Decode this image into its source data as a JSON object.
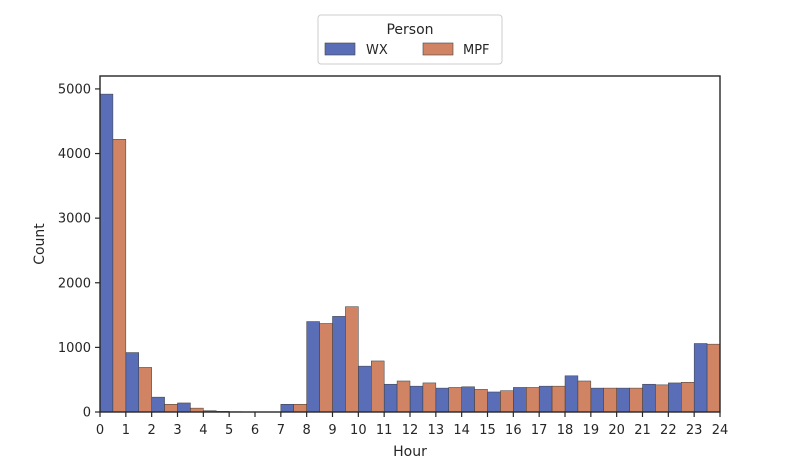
{
  "chart_data": {
    "type": "bar",
    "xlabel": "Hour",
    "ylabel": "Count",
    "x_ticks": [
      "0",
      "1",
      "2",
      "3",
      "4",
      "5",
      "6",
      "7",
      "8",
      "9",
      "10",
      "11",
      "12",
      "13",
      "14",
      "15",
      "16",
      "17",
      "18",
      "19",
      "20",
      "21",
      "22",
      "23",
      "24"
    ],
    "y_ticks": [
      "0",
      "1000",
      "2000",
      "3000",
      "4000",
      "5000"
    ],
    "xlim": [
      0,
      24
    ],
    "ylim": [
      0,
      5200
    ],
    "legend": {
      "title": "Person",
      "position": "top-center"
    },
    "categories": [
      0,
      1,
      2,
      3,
      4,
      5,
      6,
      7,
      8,
      9,
      10,
      11,
      12,
      13,
      14,
      15,
      16,
      17,
      18,
      19,
      20,
      21,
      22,
      23
    ],
    "series": [
      {
        "name": "WX",
        "color": "#5a6eb7",
        "values": [
          4920,
          920,
          230,
          140,
          20,
          5,
          3,
          120,
          1400,
          1480,
          710,
          430,
          400,
          370,
          390,
          310,
          380,
          400,
          560,
          370,
          370,
          430,
          450,
          1060
        ]
      },
      {
        "name": "MPF",
        "color": "#d08463",
        "values": [
          4220,
          690,
          120,
          60,
          10,
          3,
          2,
          120,
          1370,
          1630,
          790,
          480,
          450,
          380,
          350,
          330,
          380,
          400,
          480,
          370,
          370,
          420,
          460,
          1050
        ]
      }
    ]
  }
}
